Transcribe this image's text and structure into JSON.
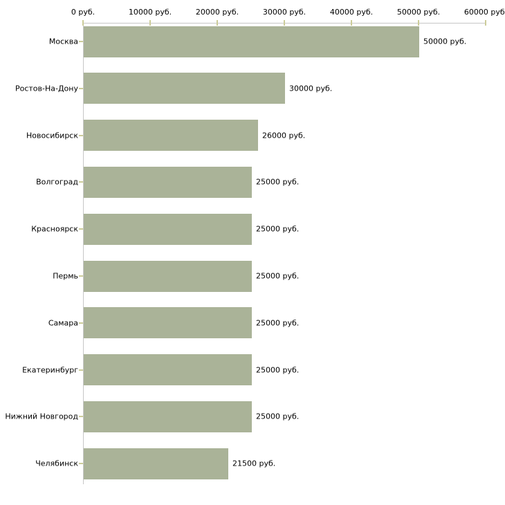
{
  "chart_data": {
    "type": "bar",
    "orientation": "horizontal",
    "title": "",
    "xlabel": "",
    "ylabel": "",
    "unit": "руб.",
    "categories": [
      "Москва",
      "Ростов-На-Дону",
      "Новосибирск",
      "Волгоград",
      "Красноярск",
      "Пермь",
      "Самара",
      "Екатеринбург",
      "Нижний Новгород",
      "Челябинск"
    ],
    "values": [
      50000,
      30000,
      26000,
      25000,
      25000,
      25000,
      25000,
      25000,
      25000,
      21500
    ],
    "value_labels": [
      "50000 руб.",
      "30000 руб.",
      "26000 руб.",
      "25000 руб.",
      "25000 руб.",
      "25000 руб.",
      "25000 руб.",
      "25000 руб.",
      "25000 руб.",
      "21500 руб."
    ],
    "x_axis": {
      "position": "top",
      "ticks": [
        0,
        10000,
        20000,
        30000,
        40000,
        50000,
        60000
      ],
      "tick_labels": [
        "0 руб.",
        "10000 руб.",
        "20000 руб.",
        "30000 руб.",
        "40000 руб.",
        "50000 руб.",
        "60000 руб."
      ]
    },
    "xlim": [
      0,
      60000
    ],
    "grid": false,
    "legend": false,
    "colors": {
      "bar": "#aab398",
      "axis_line": "#c6c6c6",
      "tick_mark": "#cccc99",
      "text": "#000000",
      "background": "#ffffff"
    }
  }
}
